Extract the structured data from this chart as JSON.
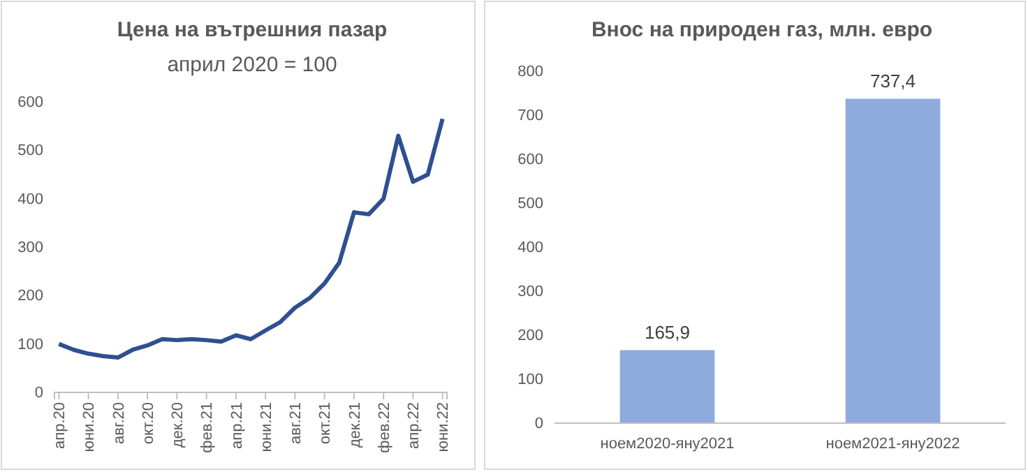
{
  "chart_data": [
    {
      "type": "line",
      "title": "Цена на вътрешния пазар",
      "subtitle": "април 2020 = 100",
      "categories": [
        "апр.20",
        null,
        "юни.20",
        null,
        "авг.20",
        null,
        "окт.20",
        null,
        "дек.20",
        null,
        "фев.21",
        null,
        "апр.21",
        null,
        "юни.21",
        null,
        "авг.21",
        null,
        "окт.21",
        null,
        "дек.21",
        null,
        "фев.22",
        null,
        "апр.22",
        null,
        "юни.22"
      ],
      "series": [
        {
          "color": "#2f4f8f",
          "values": [
            100,
            88,
            80,
            75,
            72,
            88,
            97,
            110,
            108,
            110,
            108,
            105,
            118,
            110,
            128,
            145,
            175,
            195,
            225,
            268,
            372,
            368,
            400,
            530,
            435,
            450,
            565
          ]
        }
      ],
      "ylim": [
        0,
        600
      ],
      "yticks": [
        0,
        100,
        200,
        300,
        400,
        500,
        600
      ],
      "grid": false,
      "marker": "none",
      "line_style": "solid"
    },
    {
      "type": "bar",
      "title": "Внос на природен газ, млн. евро",
      "categories": [
        "ноем2020-яну2021",
        "ноем2021-яну2022"
      ],
      "values": [
        165.9,
        737.4
      ],
      "value_labels": [
        "165,9",
        "737,4"
      ],
      "color": "#8faadc",
      "ylim": [
        0,
        800
      ],
      "yticks": [
        0,
        100,
        200,
        300,
        400,
        500,
        600,
        700,
        800
      ],
      "grid": false
    }
  ]
}
